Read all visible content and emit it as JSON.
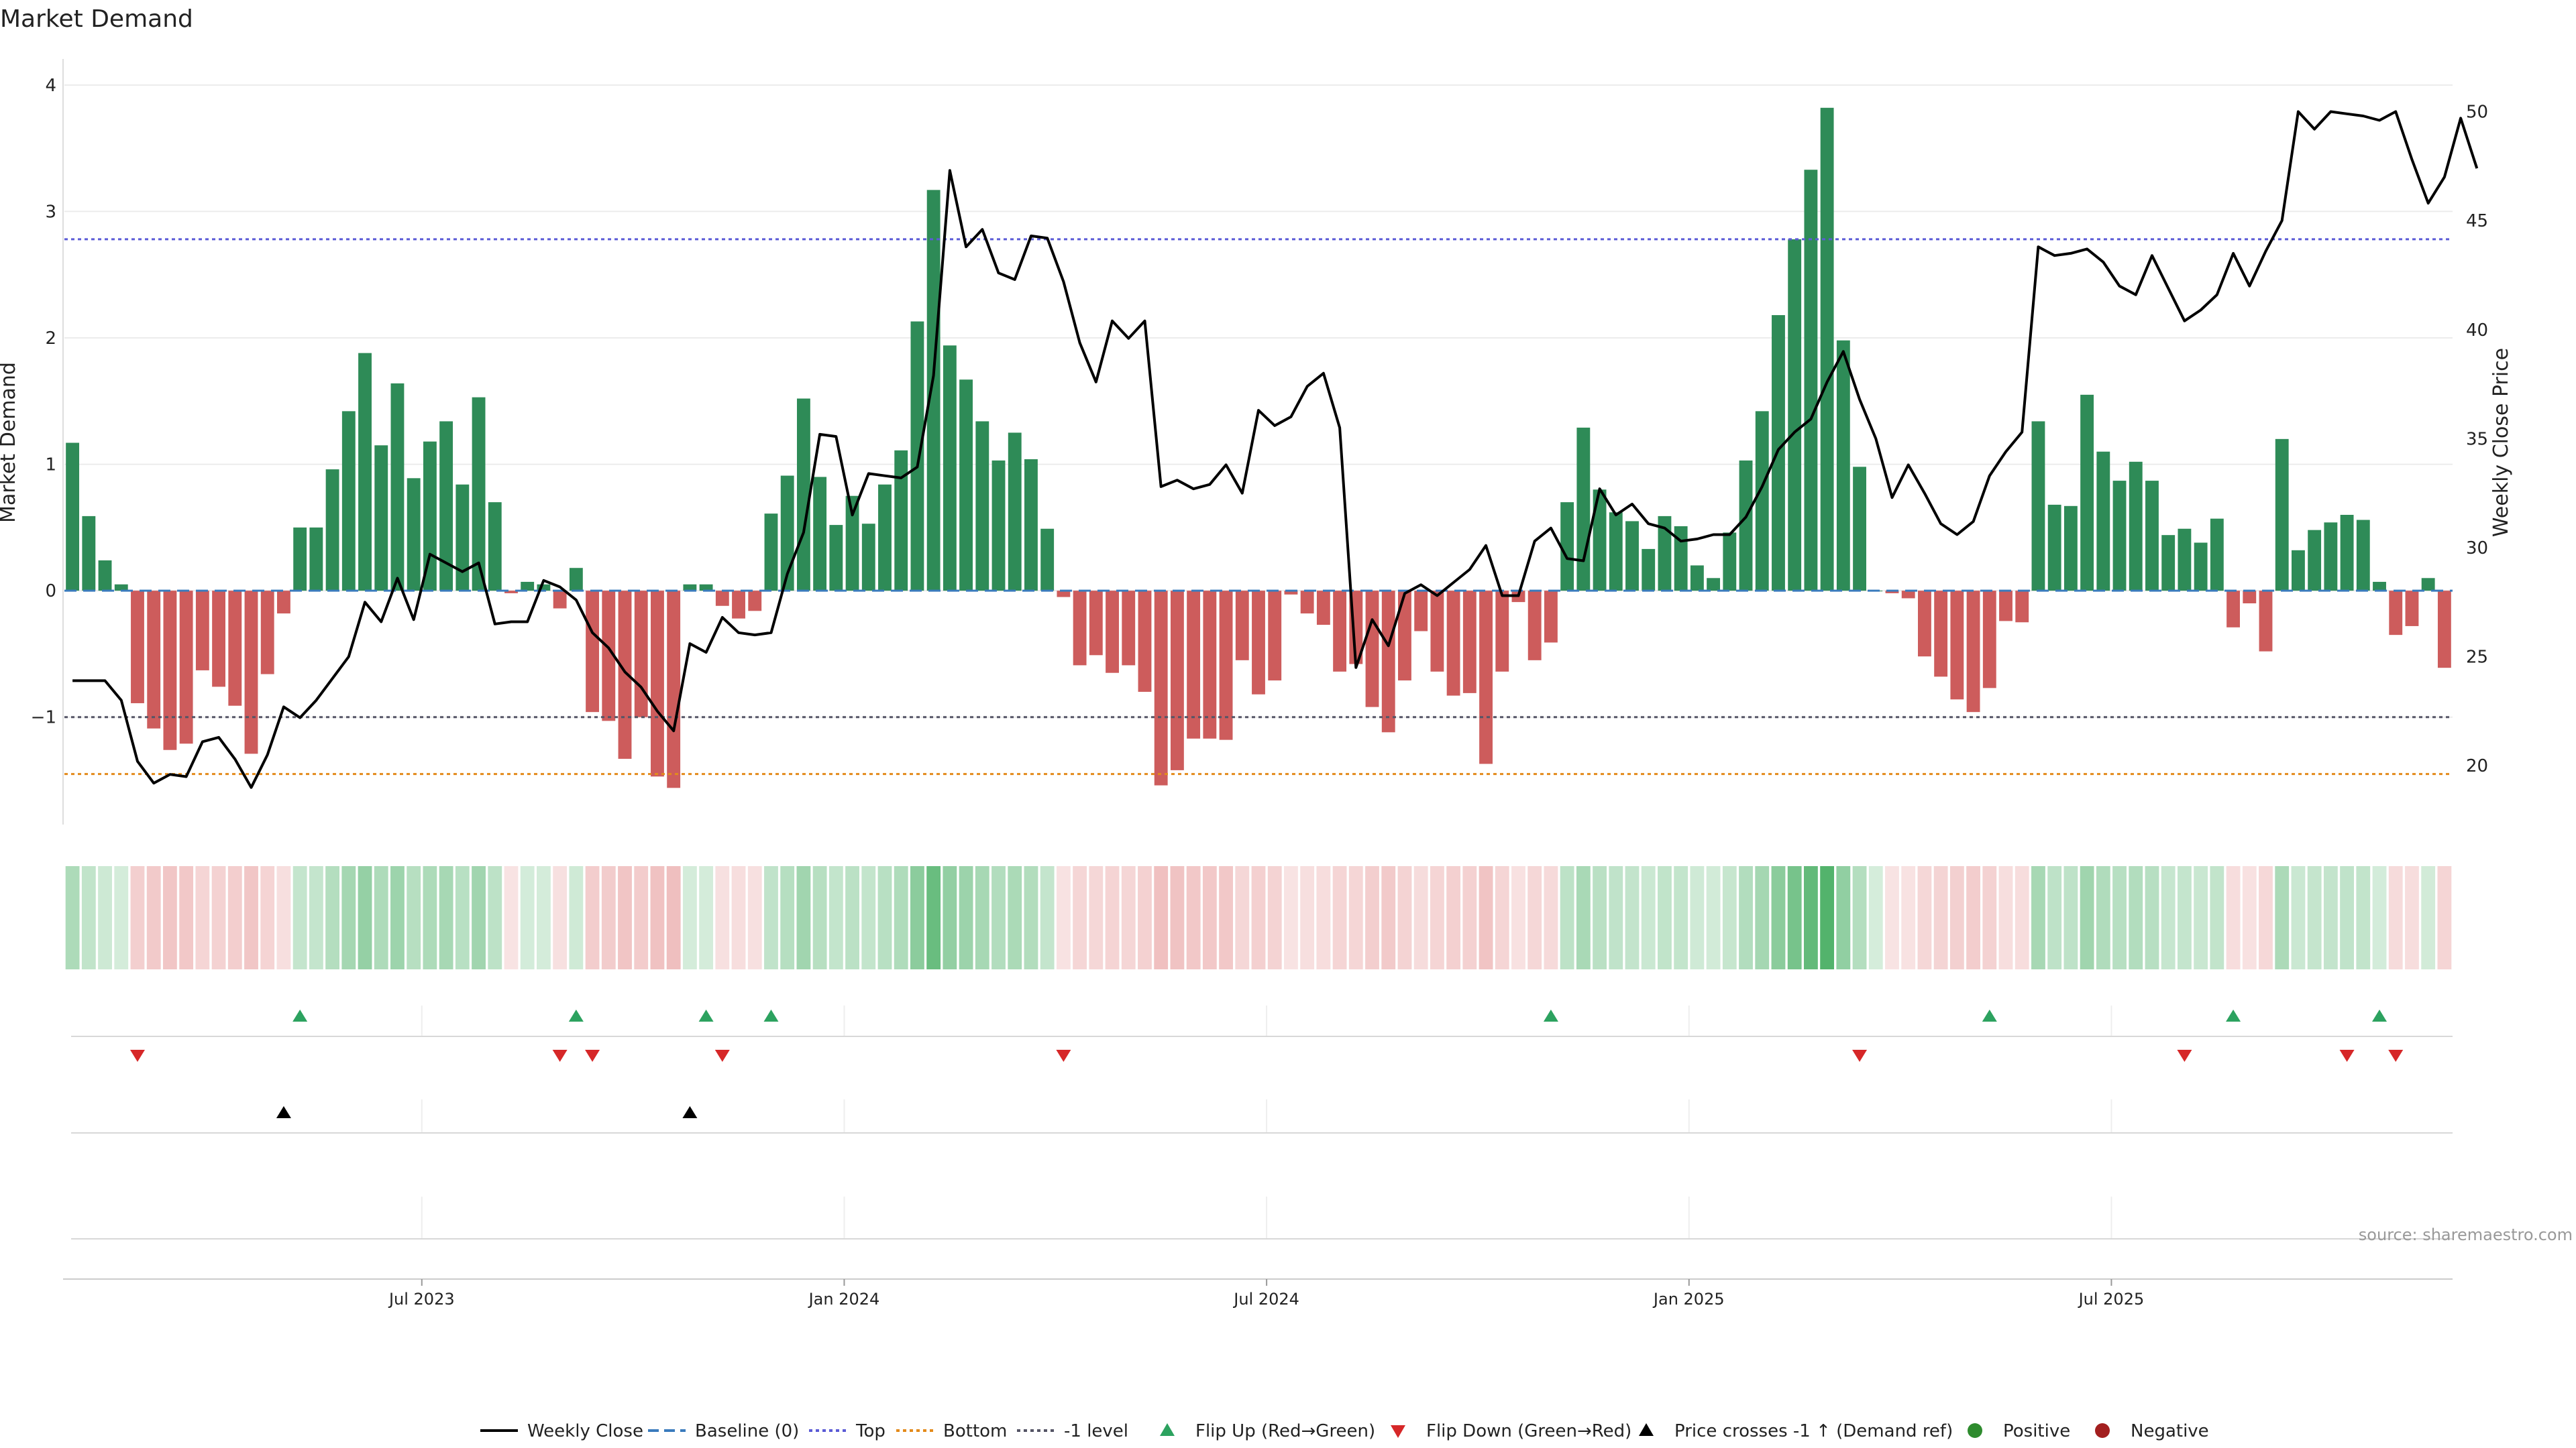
{
  "chart_data": {
    "type": "bar",
    "title": "Market Demand",
    "ylabel": "Market Demand",
    "y2label": "Weekly Close Price",
    "ylim": [
      -1.85,
      4.1
    ],
    "y2lim": [
      17.3,
      51.8
    ],
    "yticks": [
      -1,
      0,
      1,
      2,
      3,
      4
    ],
    "ytick_labels": [
      "−1",
      "0",
      "1",
      "2",
      "3",
      "4"
    ],
    "y2ticks": [
      20,
      25,
      30,
      35,
      40,
      45,
      50
    ],
    "y2tick_labels": [
      "20",
      "25",
      "30",
      "35",
      "40",
      "45",
      "50"
    ],
    "xticks": [
      {
        "index": 21.5,
        "label": "Jul 2023"
      },
      {
        "index": 47.5,
        "label": "Jan 2024"
      },
      {
        "index": 73.5,
        "label": "Jul 2024"
      },
      {
        "index": 99.5,
        "label": "Jan 2025"
      },
      {
        "index": 125.5,
        "label": "Jul 2025"
      }
    ],
    "reference_lines": {
      "top": 2.78,
      "minus_one": -1.0,
      "bottom": -1.45,
      "baseline": 0
    },
    "demand": [
      1.17,
      0.59,
      0.24,
      0.05,
      -0.89,
      -1.09,
      -1.26,
      -1.21,
      -0.63,
      -0.76,
      -0.91,
      -1.29,
      -0.66,
      -0.18,
      0.5,
      0.5,
      0.96,
      1.42,
      1.88,
      1.15,
      1.64,
      0.89,
      1.18,
      1.34,
      0.84,
      1.53,
      0.7,
      -0.02,
      0.07,
      0.05,
      -0.14,
      0.18,
      -0.96,
      -1.03,
      -1.33,
      -1.0,
      -1.47,
      -1.56,
      0.05,
      0.05,
      -0.12,
      -0.22,
      -0.16,
      0.61,
      0.91,
      1.52,
      0.9,
      0.52,
      0.75,
      0.53,
      0.84,
      1.11,
      2.13,
      3.17,
      1.94,
      1.67,
      1.34,
      1.03,
      1.25,
      1.04,
      0.49,
      -0.05,
      -0.59,
      -0.51,
      -0.65,
      -0.59,
      -0.8,
      -1.54,
      -1.42,
      -1.17,
      -1.17,
      -1.18,
      -0.55,
      -0.82,
      -0.71,
      -0.03,
      -0.18,
      -0.27,
      -0.64,
      -0.58,
      -0.92,
      -1.12,
      -0.71,
      -0.32,
      -0.64,
      -0.83,
      -0.81,
      -1.37,
      -0.64,
      -0.09,
      -0.55,
      -0.41,
      0.7,
      1.29,
      0.8,
      0.62,
      0.55,
      0.33,
      0.59,
      0.51,
      0.2,
      0.1,
      0.46,
      1.03,
      1.42,
      2.18,
      2.78,
      3.33,
      3.82,
      1.98,
      0.98,
      0.0,
      -0.02,
      -0.06,
      -0.52,
      -0.68,
      -0.86,
      -0.96,
      -0.77,
      -0.24,
      -0.25,
      1.34,
      0.68,
      0.67,
      1.55,
      1.1,
      0.87,
      1.02,
      0.87,
      0.44,
      0.49,
      0.38,
      0.57,
      -0.29,
      -0.1,
      -0.48,
      1.2,
      0.32,
      0.48,
      0.54,
      0.6,
      0.56,
      0.07,
      -0.35,
      -0.28,
      0.1,
      -0.61
    ],
    "weekly_close": [
      23.9,
      23.9,
      23.9,
      23.0,
      20.2,
      19.2,
      19.6,
      19.5,
      21.1,
      21.3,
      20.3,
      19.0,
      20.5,
      22.7,
      22.2,
      23.0,
      24.0,
      25.0,
      27.5,
      26.6,
      28.6,
      26.7,
      29.7,
      29.3,
      28.9,
      29.3,
      26.5,
      26.6,
      26.6,
      28.5,
      28.2,
      27.6,
      26.1,
      25.4,
      24.3,
      23.6,
      22.5,
      21.6,
      25.6,
      25.2,
      26.8,
      26.1,
      26.0,
      26.1,
      28.8,
      30.7,
      35.2,
      35.1,
      31.5,
      33.4,
      33.3,
      33.2,
      33.7,
      37.9,
      47.3,
      43.8,
      44.6,
      42.6,
      42.3,
      44.3,
      44.2,
      42.2,
      39.4,
      37.6,
      40.4,
      39.6,
      40.4,
      32.8,
      33.1,
      32.7,
      32.9,
      33.8,
      32.5,
      36.3,
      35.6,
      36.0,
      37.4,
      38.0,
      35.5,
      24.5,
      26.7,
      25.5,
      27.9,
      28.3,
      27.8,
      28.4,
      29.0,
      30.1,
      27.8,
      27.8,
      30.3,
      30.9,
      29.5,
      29.4,
      32.7,
      31.5,
      32.0,
      31.1,
      30.9,
      30.3,
      30.4,
      30.6,
      30.6,
      31.4,
      32.8,
      34.5,
      35.3,
      35.9,
      37.6,
      39.0,
      36.8,
      35.0,
      32.3,
      33.8,
      32.5,
      31.1,
      30.6,
      31.2,
      33.3,
      34.4,
      35.3,
      43.8,
      43.4,
      43.5,
      43.7,
      43.1,
      42.0,
      41.6,
      43.4,
      41.9,
      40.4,
      40.9,
      41.6,
      43.5,
      42.0,
      43.6,
      45.0,
      50.0,
      49.2,
      50.0,
      49.9,
      49.8,
      49.6,
      50.0,
      47.8,
      45.8,
      47.0,
      49.7,
      47.4
    ],
    "signals": {
      "flip_up": [
        14,
        31,
        39,
        43,
        91,
        118,
        133,
        142
      ],
      "flip_down": [
        4,
        30,
        32,
        40,
        61,
        110,
        130,
        140,
        143
      ],
      "price_crosses_minus1_up": [
        13,
        38
      ]
    },
    "legend": [
      {
        "label": "Weekly Close",
        "style": "line",
        "color": "#000000"
      },
      {
        "label": "Baseline (0)",
        "style": "dash",
        "color": "#3a7bbd"
      },
      {
        "label": "Top",
        "style": "dot",
        "color": "#5b5bd6"
      },
      {
        "label": "Bottom",
        "style": "dot",
        "color": "#e38b1c"
      },
      {
        "label": "-1 level",
        "style": "dot",
        "color": "#555566"
      },
      {
        "label": "Flip Up (Red→Green)",
        "style": "tri-up",
        "color": "#2ca25f"
      },
      {
        "label": "Flip Down (Green→Red)",
        "style": "tri-down",
        "color": "#d62728"
      },
      {
        "label": "Price crosses -1 ↑ (Demand ref)",
        "style": "tri-up",
        "color": "#000000"
      },
      {
        "label": "Positive",
        "style": "circle",
        "color": "#2e8b2e"
      },
      {
        "label": "Negative",
        "style": "circle",
        "color": "#a31f1f"
      }
    ],
    "colors": {
      "positive_bar": "#2e8b57",
      "negative_bar": "#cd5c5c",
      "price_line": "#000000",
      "strip_pos": "#41ab5d",
      "strip_neg": "#e08080"
    },
    "source": "source: sharemaestro.com"
  }
}
